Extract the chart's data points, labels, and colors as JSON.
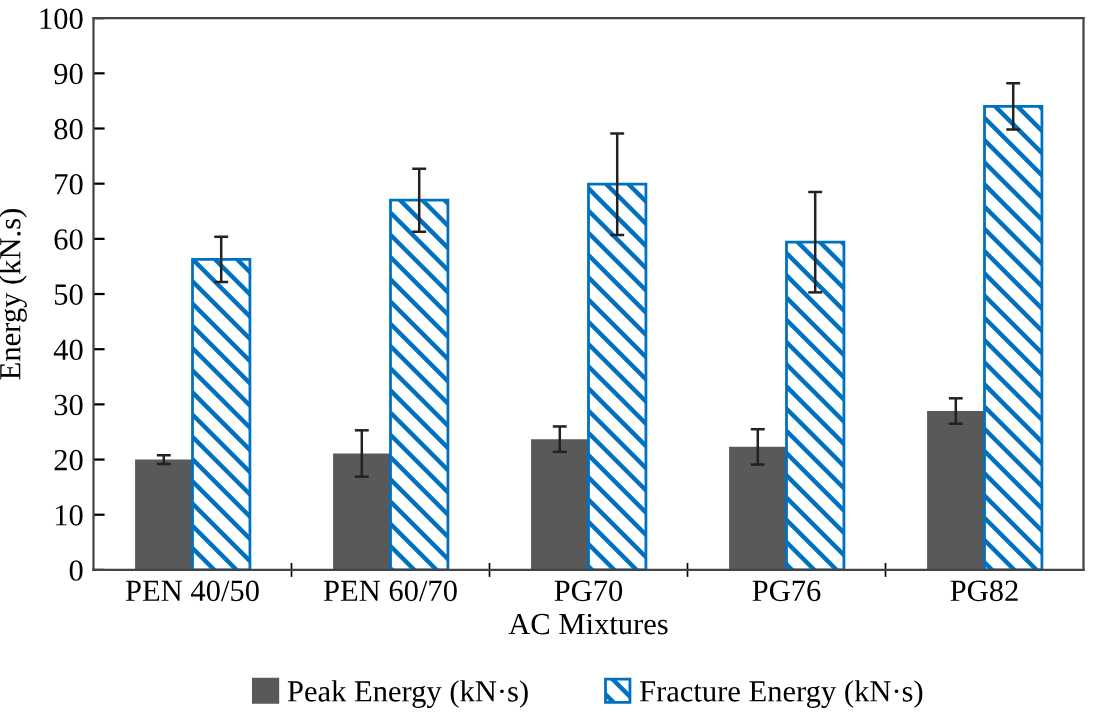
{
  "chart_data": {
    "type": "bar",
    "xlabel": "AC Mixtures",
    "ylabel": "Energy (kN.s)",
    "categories": [
      "PEN 40/50",
      "PEN 60/70",
      "PG70",
      "PG76",
      "PG82"
    ],
    "series": [
      {
        "name": "Peak Energy (kN·s)",
        "color": "#595959",
        "values": [
          20.0,
          21.1,
          23.7,
          22.3,
          28.8
        ],
        "errors": [
          0.8,
          4.2,
          2.3,
          3.2,
          2.3
        ]
      },
      {
        "name": "Fracture Energy (kN·s)",
        "color": "#0070c0",
        "values": [
          56.3,
          67.0,
          69.9,
          59.4,
          84.0
        ],
        "errors": [
          4.1,
          5.7,
          9.2,
          9.1,
          4.2
        ]
      }
    ],
    "ylim": [
      0,
      100
    ],
    "yticks": [
      0,
      10,
      20,
      30,
      40,
      50,
      60,
      70,
      80,
      90,
      100
    ],
    "grid": false,
    "legend": "bottom"
  }
}
